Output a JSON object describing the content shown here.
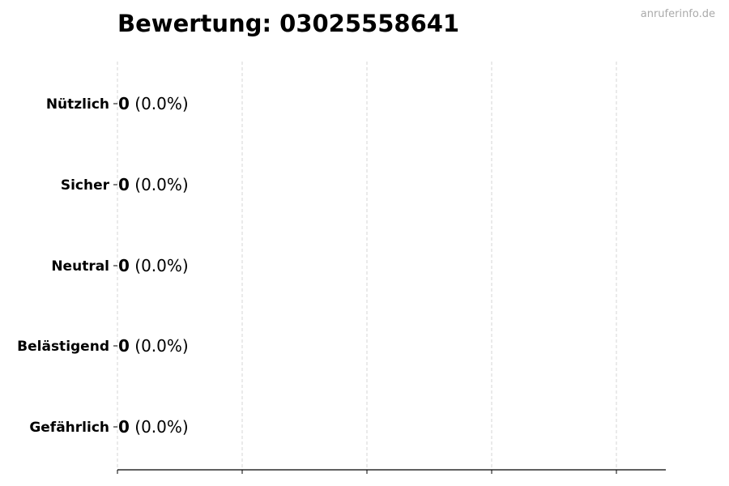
{
  "chart_data": {
    "type": "bar",
    "orientation": "horizontal",
    "title": "Bewertung: 03025558641",
    "categories": [
      "Nützlich",
      "Sicher",
      "Neutral",
      "Belästigend",
      "Gefährlich"
    ],
    "values": [
      0,
      0,
      0,
      0,
      0
    ],
    "value_labels": [
      "0",
      "0",
      "0",
      "0",
      "0"
    ],
    "percent_labels": [
      "(0.0%)",
      "(0.0%)",
      "(0.0%)",
      "(0.0%)",
      "(0.0%)"
    ],
    "xlabel": "",
    "ylabel": "",
    "grid": "vertical dashed",
    "x_tick_labels": false,
    "colors": {
      "bar_edge": "#222222",
      "grid": "#cccccc",
      "axis": "#000000"
    }
  },
  "watermark": "anruferinfo.de"
}
